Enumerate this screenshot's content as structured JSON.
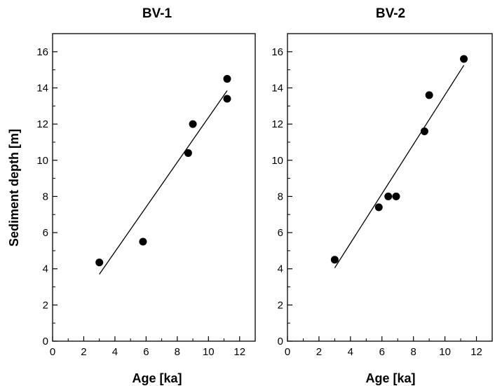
{
  "chart_data": [
    {
      "type": "scatter",
      "title": "BV-1",
      "xlabel": "Age [ka]",
      "ylabel": "Sediment depth [m]",
      "xlim": [
        0,
        13
      ],
      "ylim": [
        0,
        17
      ],
      "xticks": [
        "0",
        "2",
        "4",
        "6",
        "8",
        "10",
        "12"
      ],
      "yticks": [
        "0",
        "2",
        "4",
        "6",
        "8",
        "10",
        "12",
        "14",
        "16"
      ],
      "points": [
        {
          "x": 3.0,
          "y": 4.35
        },
        {
          "x": 5.8,
          "y": 5.5
        },
        {
          "x": 8.7,
          "y": 10.4
        },
        {
          "x": 9.0,
          "y": 12.0
        },
        {
          "x": 11.2,
          "y": 14.5
        },
        {
          "x": 11.2,
          "y": 13.4
        }
      ],
      "fit_line": {
        "x": [
          3.0,
          11.2
        ],
        "y": [
          3.7,
          13.85
        ]
      },
      "grid": false
    },
    {
      "type": "scatter",
      "title": "BV-2",
      "xlabel": "Age [ka]",
      "ylabel": "",
      "xlim": [
        0,
        13
      ],
      "ylim": [
        0,
        17
      ],
      "xticks": [
        "0",
        "2",
        "4",
        "6",
        "8",
        "10",
        "12"
      ],
      "yticks": [
        "0",
        "2",
        "4",
        "6",
        "8",
        "10",
        "12",
        "14",
        "16"
      ],
      "points": [
        {
          "x": 3.0,
          "y": 4.5
        },
        {
          "x": 5.8,
          "y": 7.4
        },
        {
          "x": 6.4,
          "y": 8.0
        },
        {
          "x": 6.9,
          "y": 8.0
        },
        {
          "x": 8.7,
          "y": 11.6
        },
        {
          "x": 9.0,
          "y": 13.6
        },
        {
          "x": 11.2,
          "y": 15.6
        }
      ],
      "fit_line": {
        "x": [
          3.0,
          11.2
        ],
        "y": [
          4.05,
          15.25
        ]
      },
      "grid": false
    }
  ]
}
